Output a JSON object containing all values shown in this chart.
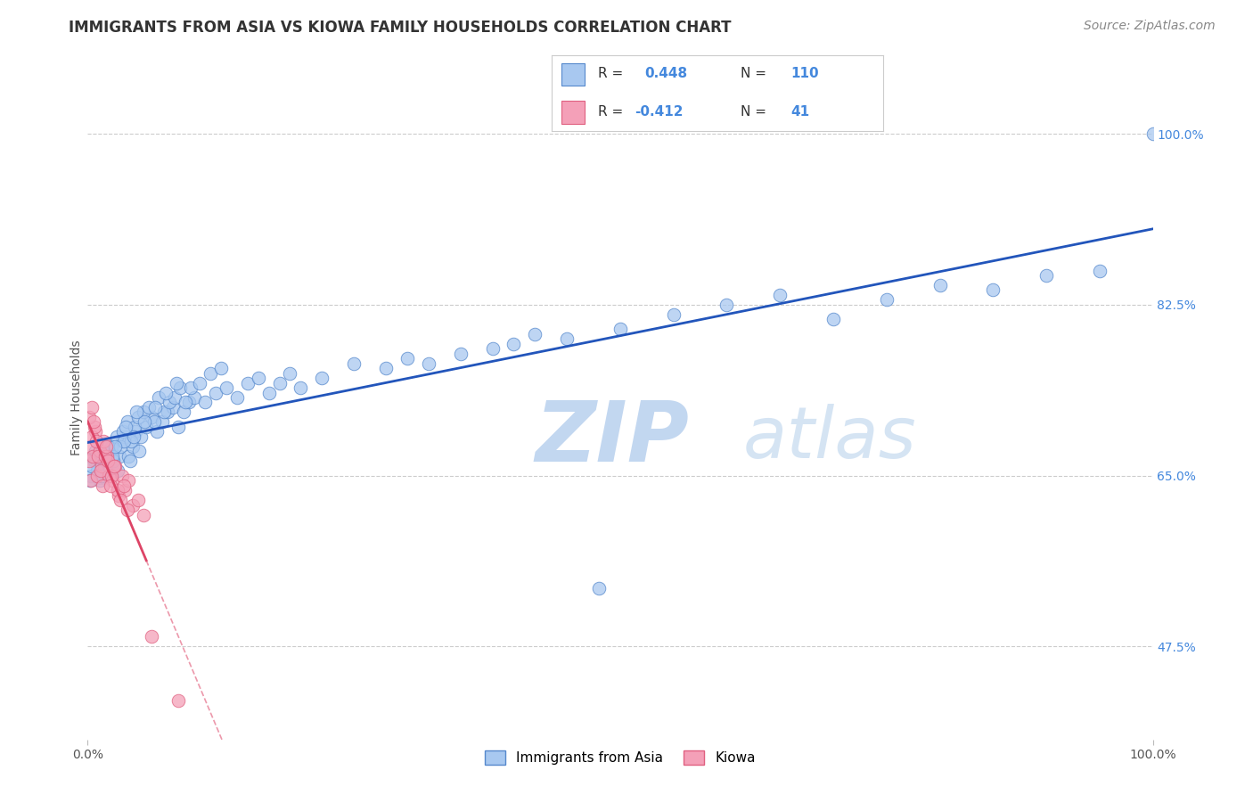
{
  "title": "IMMIGRANTS FROM ASIA VS KIOWA FAMILY HOUSEHOLDS CORRELATION CHART",
  "source_text": "Source: ZipAtlas.com",
  "ylabel": "Family Households",
  "legend_blue_label": "Immigrants from Asia",
  "legend_pink_label": "Kiowa",
  "blue_scatter_color": "#A8C8F0",
  "pink_scatter_color": "#F4A0B8",
  "blue_edge_color": "#5588CC",
  "pink_edge_color": "#E06080",
  "blue_line_color": "#2255BB",
  "pink_line_color": "#DD4466",
  "watermark": "ZIPatlas",
  "watermark_color": "#C8DCF0",
  "background_color": "#FFFFFF",
  "grid_color": "#CCCCCC",
  "title_color": "#333333",
  "right_tick_color": "#4488DD",
  "xlim": [
    0,
    100
  ],
  "ylim": [
    38,
    108
  ],
  "yticks": [
    47.5,
    65.0,
    82.5,
    100.0
  ],
  "blue_points_x": [
    0.5,
    0.8,
    1.0,
    1.2,
    1.5,
    1.8,
    2.0,
    2.2,
    2.5,
    2.8,
    3.0,
    3.2,
    3.5,
    3.8,
    4.0,
    4.2,
    4.5,
    4.8,
    5.0,
    5.5,
    6.0,
    6.5,
    7.0,
    7.5,
    8.0,
    8.5,
    9.0,
    9.5,
    10.0,
    11.0,
    12.0,
    13.0,
    14.0,
    15.0,
    16.0,
    17.0,
    18.0,
    19.0,
    20.0,
    0.3,
    0.6,
    0.9,
    1.1,
    1.4,
    1.6,
    1.9,
    2.1,
    2.4,
    2.7,
    3.1,
    3.3,
    3.7,
    4.1,
    4.4,
    4.7,
    5.2,
    5.7,
    6.2,
    6.7,
    7.2,
    7.7,
    8.2,
    8.7,
    9.2,
    9.7,
    10.5,
    11.5,
    12.5,
    0.4,
    1.3,
    2.3,
    3.4,
    4.3,
    5.3,
    6.3,
    7.3,
    8.3,
    0.2,
    0.7,
    1.7,
    2.6,
    3.6,
    4.6,
    25.0,
    30.0,
    35.0,
    40.0,
    45.0,
    50.0,
    55.0,
    60.0,
    65.0,
    70.0,
    75.0,
    80.0,
    85.0,
    90.0,
    95.0,
    100.0,
    22.0,
    28.0,
    32.0,
    38.0,
    42.0,
    48.0
  ],
  "blue_points_y": [
    67.0,
    66.5,
    65.5,
    64.8,
    66.0,
    65.2,
    67.5,
    68.0,
    66.0,
    65.5,
    67.0,
    68.5,
    69.0,
    67.0,
    66.5,
    68.0,
    69.5,
    67.5,
    69.0,
    70.0,
    71.0,
    69.5,
    70.5,
    71.5,
    72.0,
    70.0,
    71.5,
    72.5,
    73.0,
    72.5,
    73.5,
    74.0,
    73.0,
    74.5,
    75.0,
    73.5,
    74.5,
    75.5,
    74.0,
    65.0,
    66.5,
    65.5,
    64.5,
    67.0,
    66.5,
    68.0,
    67.0,
    66.5,
    69.0,
    68.0,
    69.5,
    70.5,
    68.5,
    70.0,
    71.0,
    71.5,
    72.0,
    70.5,
    73.0,
    71.5,
    72.5,
    73.0,
    74.0,
    72.5,
    74.0,
    74.5,
    75.5,
    76.0,
    66.0,
    65.0,
    67.0,
    68.5,
    69.0,
    70.5,
    72.0,
    73.5,
    74.5,
    64.5,
    67.5,
    66.5,
    68.0,
    70.0,
    71.5,
    76.5,
    77.0,
    77.5,
    78.5,
    79.0,
    80.0,
    81.5,
    82.5,
    83.5,
    81.0,
    83.0,
    84.5,
    84.0,
    85.5,
    86.0,
    100.0,
    75.0,
    76.0,
    76.5,
    78.0,
    79.5,
    53.5
  ],
  "pink_points_x": [
    0.1,
    0.2,
    0.3,
    0.5,
    0.7,
    0.9,
    1.1,
    1.3,
    1.5,
    1.8,
    2.0,
    2.3,
    2.6,
    2.9,
    3.2,
    3.5,
    3.8,
    4.2,
    4.7,
    5.2,
    0.4,
    0.6,
    0.8,
    1.0,
    1.2,
    1.4,
    1.6,
    1.9,
    2.2,
    2.5,
    2.8,
    3.1,
    3.4,
    3.7,
    0.15,
    0.35,
    0.55,
    1.7,
    2.1,
    6.0,
    8.5
  ],
  "pink_points_y": [
    66.5,
    68.0,
    64.5,
    67.0,
    69.5,
    65.0,
    67.5,
    66.0,
    68.5,
    67.0,
    65.0,
    64.5,
    66.0,
    63.0,
    65.0,
    63.5,
    64.5,
    62.0,
    62.5,
    61.0,
    69.0,
    70.0,
    68.5,
    67.0,
    65.5,
    64.0,
    67.0,
    66.5,
    65.0,
    66.0,
    63.5,
    62.5,
    64.0,
    61.5,
    71.0,
    72.0,
    70.5,
    68.0,
    64.0,
    48.5,
    42.0
  ],
  "pink_solid_xmax": 5.5,
  "title_fontsize": 12,
  "axis_label_fontsize": 10,
  "tick_fontsize": 10,
  "source_fontsize": 10
}
